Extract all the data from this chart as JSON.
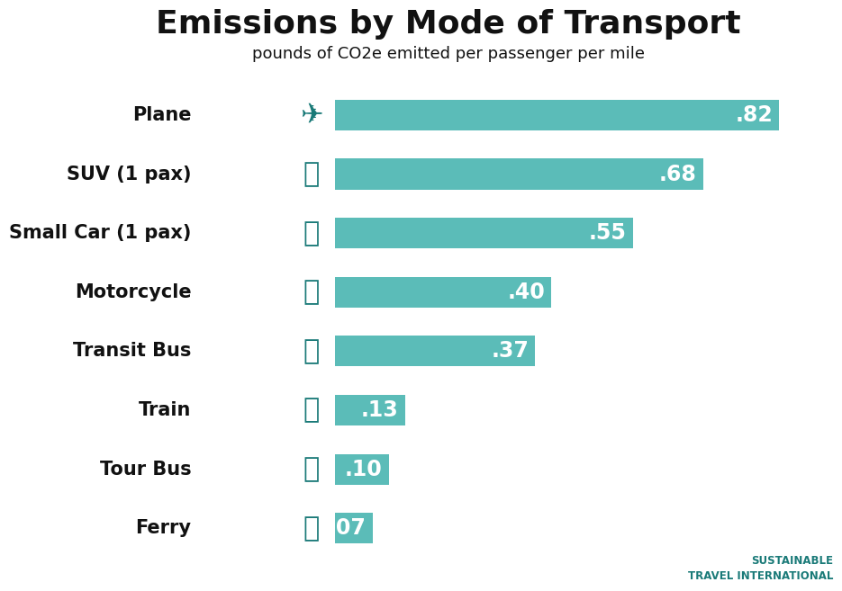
{
  "title": "Emissions by Mode of Transport",
  "subtitle": "pounds of CO2e emitted per passenger per mile",
  "categories": [
    "Plane",
    "SUV (1 pax)",
    "Small Car (1 pax)",
    "Motorcycle",
    "Transit Bus",
    "Train",
    "Tour Bus",
    "Ferry"
  ],
  "values": [
    0.82,
    0.68,
    0.55,
    0.4,
    0.37,
    0.13,
    0.1,
    0.07
  ],
  "value_labels": [
    ".82",
    ".68",
    ".55",
    ".40",
    ".37",
    ".13",
    ".10",
    ".07"
  ],
  "bar_color": "#5bbcb8",
  "icon_color": "#1a7a78",
  "text_color": "#111111",
  "label_text_color": "#ffffff",
  "bg_color": "#ffffff",
  "title_fontsize": 26,
  "subtitle_fontsize": 13,
  "bar_label_fontsize": 17,
  "category_fontsize": 15,
  "icon_fontsize": 22,
  "xlim_max": 0.92,
  "bar_height": 0.52,
  "logo_color": "#1a7a78"
}
